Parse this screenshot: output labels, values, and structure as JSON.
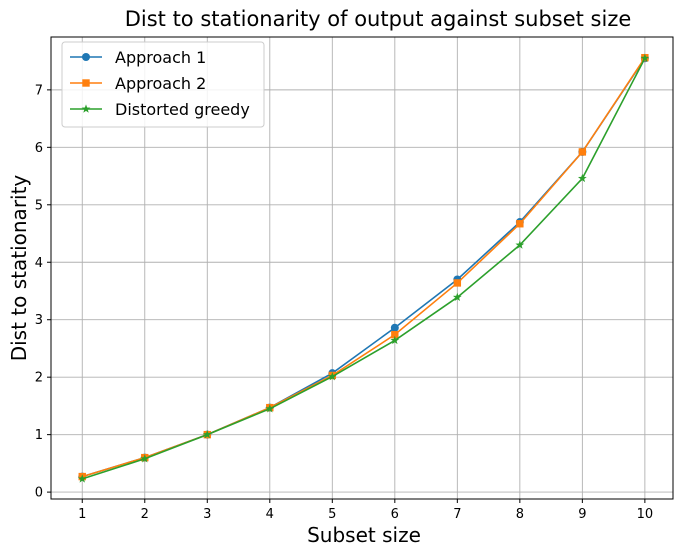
{
  "chart_data": {
    "type": "line",
    "title": "Dist to stationarity of output against subset size",
    "xlabel": "Subset size",
    "ylabel": "Dist to stationarity",
    "x": [
      1,
      2,
      3,
      4,
      5,
      6,
      7,
      8,
      9,
      10
    ],
    "xlim": [
      0.5,
      10.45
    ],
    "ylim": [
      -0.12,
      7.92
    ],
    "xticks": [
      1,
      2,
      3,
      4,
      5,
      6,
      7,
      8,
      9,
      10
    ],
    "yticks": [
      0,
      1,
      2,
      3,
      4,
      5,
      6,
      7
    ],
    "grid": true,
    "legend": "top-left",
    "series": [
      {
        "name": "Approach 1",
        "color": "#1f77b4",
        "marker": "circle",
        "values": [
          0.27,
          0.6,
          1.0,
          1.47,
          2.07,
          2.86,
          3.7,
          4.7,
          5.92,
          7.55
        ]
      },
      {
        "name": "Approach 2",
        "color": "#ff7f0e",
        "marker": "square",
        "values": [
          0.27,
          0.6,
          1.0,
          1.47,
          2.03,
          2.74,
          3.64,
          4.67,
          5.92,
          7.56
        ]
      },
      {
        "name": "Distorted greedy",
        "color": "#2ca02c",
        "marker": "star",
        "values": [
          0.23,
          0.58,
          1.0,
          1.45,
          2.01,
          2.64,
          3.39,
          4.3,
          5.46,
          7.55
        ]
      }
    ]
  }
}
